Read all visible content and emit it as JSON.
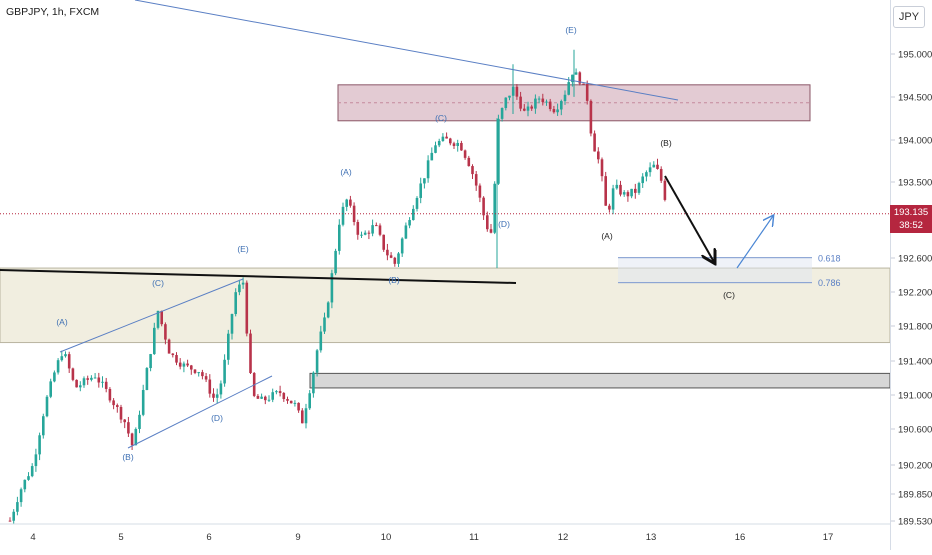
{
  "symbol_title": "GBPJPY, 1h, FXCM",
  "currency": "JPY",
  "last_price": "193.135",
  "countdown": "38:52",
  "colors": {
    "up": "#26a69a",
    "down": "#b8334a",
    "supply_zone": "#d9b9c4",
    "demand_zone": "#efebdb",
    "gray_zone": "#c9c9c9",
    "trendline": "#5a7fc4",
    "wave_label": "#3d6fb3",
    "fib": "#5a7fc4",
    "price_line": "#b5263f"
  },
  "chart_data": {
    "type": "candlestick",
    "y_axis": {
      "ticks": [
        "195.000",
        "194.500",
        "194.000",
        "193.500",
        "193.000",
        "192.600",
        "192.200",
        "191.800",
        "191.400",
        "191.000",
        "190.600",
        "190.200",
        "189.850",
        "189.530"
      ],
      "range": [
        189.45,
        195.4
      ]
    },
    "x_axis": {
      "ticks": [
        "4",
        "5",
        "6",
        "9",
        "10",
        "11",
        "12",
        "13",
        "16",
        "17"
      ]
    },
    "wave_labels": [
      {
        "text": "(A)",
        "x": "4 14:00",
        "y": 191.87
      },
      {
        "text": "(B)",
        "x": "5 09:00",
        "y": 190.22
      },
      {
        "text": "(C)",
        "x": "5 10:00",
        "y": 192.17
      },
      {
        "text": "(D)",
        "x": "6 02:00",
        "y": 190.68
      },
      {
        "text": "(E)",
        "x": "6 09:00",
        "y": 192.66
      },
      {
        "text": "(A)",
        "x": "9 12:00",
        "y": 193.52
      },
      {
        "text": "(B)",
        "x": "10 02:00",
        "y": 192.25
      },
      {
        "text": "(C)",
        "x": "10 14:00",
        "y": 194.15
      },
      {
        "text": "(D)",
        "x": "11 06:00",
        "y": 192.85
      },
      {
        "text": "(E)",
        "x": "12 02:00",
        "y": 195.35
      },
      {
        "text": "(A)",
        "x": "12 12:00",
        "y": 192.78
      },
      {
        "text": "(B)",
        "x": "13 04:00",
        "y": 193.85
      },
      {
        "text": "(C)",
        "x": "13 20:00",
        "y": 192.13
      }
    ],
    "fibonacci": [
      {
        "label": "0.618",
        "price": 192.62
      },
      {
        "label": "0.786",
        "price": 192.33
      }
    ],
    "zones": [
      {
        "name": "supply",
        "from": 194.22,
        "to": 194.64
      },
      {
        "name": "demand",
        "from": 191.63,
        "to": 192.5
      },
      {
        "name": "gray",
        "from": 191.1,
        "to": 191.27
      }
    ]
  }
}
